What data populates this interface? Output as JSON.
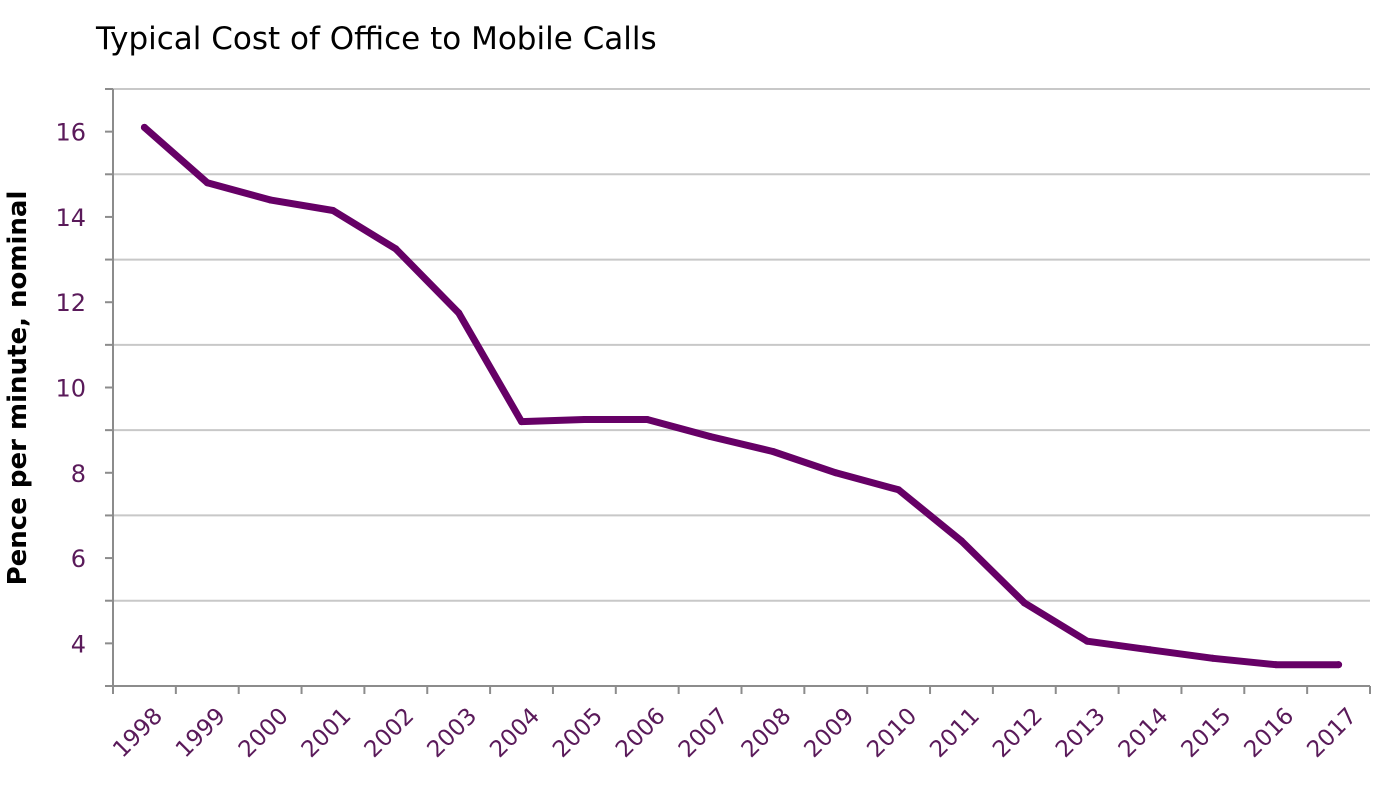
{
  "chart_data": {
    "type": "line",
    "title": "Typical Cost of Office to Mobile Calls",
    "ylabel": "Pence per minute, nominal",
    "xlabel": "",
    "categories": [
      "1998",
      "1999",
      "2000",
      "2001",
      "2002",
      "2003",
      "2004",
      "2005",
      "2006",
      "2007",
      "2008",
      "2009",
      "2010",
      "2011",
      "2012",
      "2013",
      "2014",
      "2015",
      "2016",
      "2017"
    ],
    "series": [
      {
        "values": [
          16.1,
          14.8,
          14.4,
          14.15,
          13.25,
          11.75,
          9.2,
          9.25,
          9.25,
          8.85,
          8.5,
          8.0,
          7.6,
          6.4,
          4.95,
          4.05,
          3.85,
          3.65,
          3.5,
          3.5
        ]
      }
    ],
    "yticks": [
      4,
      6,
      8,
      10,
      12,
      14,
      16
    ],
    "ylim": [
      3,
      17
    ],
    "grid": true,
    "legend": "none",
    "colors": {
      "line": "#660066",
      "text": "#5a1a5a",
      "grid": "#c8c8c8",
      "axis": "#8c8c8c"
    }
  }
}
